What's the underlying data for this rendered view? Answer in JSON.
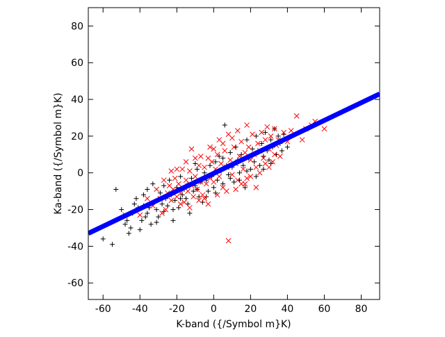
{
  "chart_data": {
    "type": "scatter",
    "title": "",
    "xlabel": "K-band ({/Symbol m}K)",
    "ylabel": "Ka-band ({/Symbol m}K)",
    "xlim": [
      -68,
      90
    ],
    "ylim": [
      -69,
      90
    ],
    "xticks": [
      -60,
      -40,
      -20,
      0,
      20,
      40,
      60,
      80
    ],
    "yticks": [
      -60,
      -40,
      -20,
      0,
      20,
      40,
      60,
      80
    ],
    "grid": false,
    "legend": "none",
    "series": [
      {
        "marker": "plus",
        "color": "#000000",
        "points": [
          [
            -60,
            -36
          ],
          [
            -55,
            -39
          ],
          [
            -53,
            -9
          ],
          [
            -50,
            -20
          ],
          [
            -48,
            -28
          ],
          [
            -47,
            -26
          ],
          [
            -45,
            -30
          ],
          [
            -44,
            -22
          ],
          [
            -43,
            -17
          ],
          [
            -42,
            -14
          ],
          [
            -40,
            -31
          ],
          [
            -39,
            -26
          ],
          [
            -38,
            -12
          ],
          [
            -37,
            -24
          ],
          [
            -36,
            -22
          ],
          [
            -35,
            -19
          ],
          [
            -34,
            -28
          ],
          [
            -33,
            -6
          ],
          [
            -32,
            -16
          ],
          [
            -31,
            -20
          ],
          [
            -30,
            -24
          ],
          [
            -29,
            -11
          ],
          [
            -28,
            -17
          ],
          [
            -27,
            -21
          ],
          [
            -26,
            -14
          ],
          [
            -25,
            -18
          ],
          [
            -24,
            -4
          ],
          [
            -23,
            -12
          ],
          [
            -22,
            -26
          ],
          [
            -21,
            -15
          ],
          [
            -20,
            -8
          ],
          [
            -19,
            -19
          ],
          [
            -18,
            -2
          ],
          [
            -17,
            -12
          ],
          [
            -16,
            -9
          ],
          [
            -15,
            -14
          ],
          [
            -14,
            -6
          ],
          [
            -13,
            -22
          ],
          [
            -12,
            -3
          ],
          [
            -11,
            -10
          ],
          [
            -10,
            -7
          ],
          [
            -9,
            2
          ],
          [
            -8,
            -13
          ],
          [
            -7,
            -5
          ],
          [
            -6,
            -16
          ],
          [
            -5,
            0
          ],
          [
            -4,
            -4
          ],
          [
            -3,
            -10
          ],
          [
            -2,
            4
          ],
          [
            -1,
            -2
          ],
          [
            0,
            -8
          ],
          [
            1,
            6
          ],
          [
            2,
            -4
          ],
          [
            3,
            9
          ],
          [
            4,
            1
          ],
          [
            5,
            -6
          ],
          [
            6,
            26
          ],
          [
            7,
            4
          ],
          [
            8,
            -1
          ],
          [
            9,
            11
          ],
          [
            10,
            3
          ],
          [
            11,
            -5
          ],
          [
            12,
            14
          ],
          [
            13,
            7
          ],
          [
            14,
            0
          ],
          [
            15,
            10
          ],
          [
            16,
            4
          ],
          [
            17,
            -8
          ],
          [
            18,
            18
          ],
          [
            19,
            8
          ],
          [
            20,
            2
          ],
          [
            21,
            13
          ],
          [
            22,
            6
          ],
          [
            23,
            20
          ],
          [
            24,
            11
          ],
          [
            25,
            4
          ],
          [
            26,
            16
          ],
          [
            27,
            9
          ],
          [
            28,
            22
          ],
          [
            29,
            12
          ],
          [
            30,
            7
          ],
          [
            31,
            18
          ],
          [
            32,
            14
          ],
          [
            33,
            24
          ],
          [
            34,
            10
          ],
          [
            35,
            20
          ],
          [
            36,
            16
          ],
          [
            37,
            12
          ],
          [
            38,
            21
          ],
          [
            40,
            14
          ],
          [
            -46,
            -33
          ],
          [
            -41,
            -19
          ],
          [
            -36,
            -9
          ],
          [
            -31,
            -27
          ],
          [
            -27,
            -7
          ],
          [
            -22,
            -20
          ],
          [
            -18,
            -14
          ],
          [
            -14,
            -17
          ],
          [
            -9,
            -9
          ],
          [
            -4,
            -13
          ],
          [
            1,
            -11
          ],
          [
            5,
            8
          ],
          [
            9,
            -3
          ],
          [
            14,
            -4
          ],
          [
            18,
            1
          ],
          [
            23,
            -2
          ],
          [
            27,
            2
          ],
          [
            31,
            5
          ],
          [
            -38,
            -18
          ],
          [
            -10,
            5
          ]
        ]
      },
      {
        "marker": "cross",
        "color": "#ff0000",
        "points": [
          [
            -48,
            -23
          ],
          [
            -40,
            -23
          ],
          [
            -36,
            -14
          ],
          [
            -33,
            -18
          ],
          [
            -31,
            -9
          ],
          [
            -29,
            -14
          ],
          [
            -27,
            -4
          ],
          [
            -26,
            -20
          ],
          [
            -25,
            -11
          ],
          [
            -24,
            -7
          ],
          [
            -23,
            -15
          ],
          [
            -22,
            -9
          ],
          [
            -21,
            -3
          ],
          [
            -20,
            -13
          ],
          [
            -19,
            -6
          ],
          [
            -18,
            -11
          ],
          [
            -17,
            2
          ],
          [
            -16,
            -16
          ],
          [
            -15,
            -4
          ],
          [
            -14,
            -10
          ],
          [
            -13,
            1
          ],
          [
            -12,
            -7
          ],
          [
            -11,
            -13
          ],
          [
            -10,
            -2
          ],
          [
            -9,
            -9
          ],
          [
            -8,
            4
          ],
          [
            -7,
            -5
          ],
          [
            -6,
            -12
          ],
          [
            -5,
            3
          ],
          [
            -4,
            -6
          ],
          [
            -3,
            8
          ],
          [
            -2,
            -3
          ],
          [
            -1,
            6
          ],
          [
            0,
            -5
          ],
          [
            1,
            2
          ],
          [
            2,
            10
          ],
          [
            3,
            -2
          ],
          [
            4,
            5
          ],
          [
            5,
            -8
          ],
          [
            6,
            12
          ],
          [
            7,
            3
          ],
          [
            8,
            -37
          ],
          [
            9,
            7
          ],
          [
            10,
            -1
          ],
          [
            11,
            14
          ],
          [
            12,
            5
          ],
          [
            13,
            -4
          ],
          [
            14,
            9
          ],
          [
            15,
            17
          ],
          [
            16,
            2
          ],
          [
            17,
            11
          ],
          [
            18,
            -3
          ],
          [
            19,
            14
          ],
          [
            20,
            7
          ],
          [
            21,
            21
          ],
          [
            22,
            10
          ],
          [
            23,
            3
          ],
          [
            24,
            16
          ],
          [
            25,
            12
          ],
          [
            26,
            22
          ],
          [
            27,
            8
          ],
          [
            28,
            18
          ],
          [
            29,
            25
          ],
          [
            30,
            13
          ],
          [
            31,
            20
          ],
          [
            32,
            6
          ],
          [
            33,
            24
          ],
          [
            34,
            15
          ],
          [
            35,
            18
          ],
          [
            36,
            9
          ],
          [
            38,
            22
          ],
          [
            40,
            17
          ],
          [
            42,
            23
          ],
          [
            45,
            31
          ],
          [
            48,
            18
          ],
          [
            50,
            24
          ],
          [
            53,
            26
          ],
          [
            55,
            28
          ],
          [
            60,
            24
          ],
          [
            -20,
            2
          ],
          [
            -15,
            6
          ],
          [
            -10,
            8
          ],
          [
            -5,
            -14
          ],
          [
            0,
            13
          ],
          [
            5,
            16
          ],
          [
            10,
            19
          ],
          [
            15,
            -6
          ],
          [
            20,
            -2
          ],
          [
            25,
            0
          ],
          [
            30,
            3
          ],
          [
            -12,
            13
          ],
          [
            -7,
            9
          ],
          [
            -2,
            14
          ],
          [
            3,
            18
          ],
          [
            8,
            21
          ],
          [
            13,
            23
          ],
          [
            18,
            26
          ],
          [
            23,
            -8
          ],
          [
            28,
            5
          ],
          [
            33,
            10
          ],
          [
            -28,
            -22
          ],
          [
            -23,
            1
          ],
          [
            -18,
            -17
          ],
          [
            -13,
            -19
          ],
          [
            -8,
            -15
          ],
          [
            -3,
            -17
          ],
          [
            2,
            -12
          ],
          [
            7,
            -10
          ],
          [
            12,
            -9
          ],
          [
            17,
            -6
          ]
        ]
      },
      {
        "marker": "line",
        "color": "#0000ff",
        "points": [
          [
            -68,
            -33
          ],
          [
            90,
            43
          ]
        ]
      }
    ]
  }
}
